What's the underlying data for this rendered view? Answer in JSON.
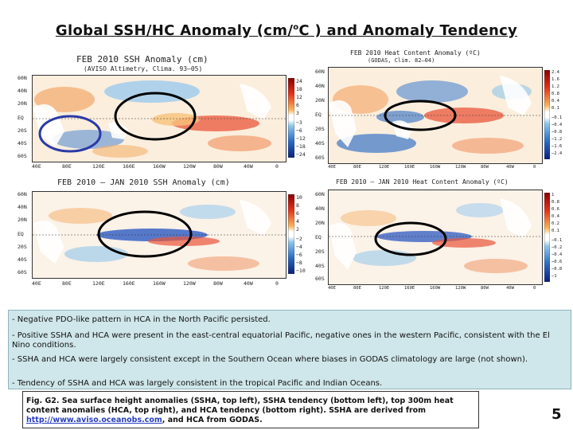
{
  "title": {
    "main": "Global SSH/HC Anomaly (cm/",
    "sup": "o",
    "rest": "C ) and Anomaly Tendency"
  },
  "panels": {
    "ssh": {
      "title_line1": "FEB 2010 SSH Anomaly (cm)",
      "title_line2": "(AVISO Altimetry, Clima. 93–05)",
      "lat_labels": [
        "60N",
        "40N",
        "20N",
        "EQ",
        "20S",
        "40S",
        "60S"
      ],
      "lon_labels": [
        "40E",
        "80E",
        "120E",
        "160E",
        "160W",
        "120W",
        "80W",
        "40W",
        "0"
      ],
      "colorbar": [
        "24",
        "18",
        "12",
        "6",
        "3",
        "−3",
        "−6",
        "−12",
        "−18",
        "−24"
      ]
    },
    "ssh_tend": {
      "title_line1": "FEB 2010 — JAN 2010 SSH Anomaly (cm)",
      "lat_labels": [
        "60N",
        "40N",
        "20N",
        "EQ",
        "20S",
        "40S",
        "60S"
      ],
      "lon_labels": [
        "40E",
        "80E",
        "120E",
        "160E",
        "160W",
        "120W",
        "80W",
        "40W",
        "0"
      ],
      "colorbar": [
        "10",
        "8",
        "6",
        "4",
        "2",
        "−2",
        "−4",
        "−6",
        "−8",
        "−10"
      ]
    },
    "hca": {
      "title_line1": "FEB 2010 Heat Content Anomaly (ºC)",
      "title_line2": "(GODAS, Clim. 82–04)",
      "lat_labels": [
        "60N",
        "40N",
        "20N",
        "EQ",
        "20S",
        "40S",
        "60S"
      ],
      "lon_labels": [
        "40E",
        "80E",
        "120E",
        "160E",
        "160W",
        "120W",
        "80W",
        "40W",
        "0"
      ],
      "colorbar": [
        "2.4",
        "1.6",
        "1.2",
        "0.8",
        "0.4",
        "0.1",
        "−0.1",
        "−0.4",
        "−0.8",
        "−1.2",
        "−1.6",
        "−2.4"
      ]
    },
    "hca_tend": {
      "title_line1": "FEB 2010 — JAN 2010 Heat Content Anomaly (ºC)",
      "lat_labels": [
        "60N",
        "40N",
        "20N",
        "EQ",
        "20S",
        "40S",
        "60S"
      ],
      "lon_labels": [
        "40E",
        "80E",
        "120E",
        "160E",
        "160W",
        "120W",
        "80W",
        "40W",
        "0"
      ],
      "colorbar": [
        "1",
        "0.8",
        "0.6",
        "0.4",
        "0.2",
        "0.1",
        "−0.1",
        "−0.2",
        "−0.4",
        "−0.6",
        "−0.8",
        "−1"
      ]
    }
  },
  "notes": [
    "- Negative PDO-like pattern in HCA in the North Pacific persisted.",
    "- Positive SSHA and HCA were present in the east-central equatorial Pacific, negative ones in the western Pacific, consistent with the El Nino conditions.",
    "- SSHA and HCA were largely consistent except in the Southern Ocean where biases in GODAS climatology are large (not shown).",
    "- Tendency of SSHA and HCA was largely consistent in the tropical Pacific and Indian Oceans."
  ],
  "caption": {
    "text1": "Fig. G2. Sea surface height anomalies (SSHA, top left), SSHA tendency (bottom left), top 300m heat content anomalies (HCA, top right), and HCA tendency (bottom right).  SSHA are derived from ",
    "link": "http://www.aviso.oceanobs.com",
    "text2": ", and HCA from GODAS."
  },
  "page_number": "5",
  "colors": {
    "ellipse_black": "#000000",
    "ellipse_blue": "#2b3aa6",
    "notes_bg": "#cfe6ea"
  }
}
